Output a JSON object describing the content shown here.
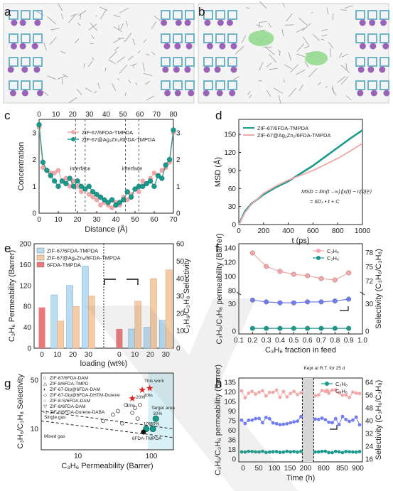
{
  "panels": {
    "a": "a",
    "b": "b",
    "c": "c",
    "d": "d",
    "e": "e",
    "f": "f",
    "g": "g",
    "h": "h"
  },
  "colors": {
    "teal": "#1a9a8c",
    "pink": "#f2a7a8",
    "blue": "#b9dcf3",
    "orange": "#f6cca5",
    "red": "#e9787a",
    "purple": "#9b63b8",
    "cyan": "#6fb3c8",
    "grey": "#9a9a9a",
    "green": "#8fd88a",
    "blueline": "#6f7df0"
  },
  "chart_data": [
    {
      "id": "c",
      "type": "scatter",
      "xlabel": "Distance (Å)",
      "ylabel": "Concentration",
      "xlim": [
        0,
        70
      ],
      "ylim": [
        0,
        3.5
      ],
      "top_xlim": [
        0,
        80
      ],
      "right_ylim": [
        0,
        3.5
      ],
      "xticks": [
        "0",
        "10",
        "20",
        "30",
        "40",
        "50",
        "60",
        "70"
      ],
      "topticks": [
        "0",
        "10",
        "20",
        "30",
        "40",
        "50",
        "60",
        "70",
        "80"
      ],
      "yticks": [
        "0",
        "1",
        "2",
        "3"
      ],
      "ryticks": [
        "0",
        "1",
        "2",
        "3"
      ],
      "annotations": [
        "interface",
        "interface"
      ],
      "series": [
        {
          "name": "ZIF-67/6FDA-TMPDA",
          "color": "#f2a7a8",
          "x": [
            0,
            2,
            4,
            6,
            8,
            10,
            12,
            14,
            16,
            18,
            20,
            22,
            24,
            26,
            28,
            30,
            32,
            34,
            36,
            38,
            40,
            42,
            44,
            46,
            48,
            50,
            52,
            54,
            56,
            58,
            60,
            62,
            64,
            66,
            68,
            70
          ],
          "y": [
            3.2,
            1.7,
            1.6,
            1.5,
            1.5,
            1.6,
            1.2,
            1.3,
            1.0,
            1.2,
            1.0,
            0.8,
            0.9,
            0.7,
            0.6,
            0.5,
            0.3,
            0.4,
            0.3,
            0.2,
            0.4,
            0.3,
            0.6,
            0.5,
            0.7,
            0.9,
            0.8,
            1.2,
            1.1,
            1.3,
            1.5,
            1.4,
            1.6,
            1.7,
            1.9,
            3.0
          ]
        },
        {
          "name": "ZIF-67@Ag₂Zn₂/6FDA-TMPDA",
          "color": "#1a9a8c",
          "x": [
            0,
            2,
            4,
            6,
            8,
            10,
            12,
            14,
            16,
            18,
            20,
            22,
            24,
            26,
            28,
            30,
            32,
            34,
            36,
            38,
            40,
            42,
            44,
            46,
            48,
            50,
            52,
            54,
            56,
            58,
            60,
            62,
            64,
            66,
            68,
            70
          ],
          "y": [
            3.3,
            1.9,
            1.6,
            1.4,
            1.2,
            1.0,
            1.2,
            1.1,
            1.3,
            1.0,
            1.2,
            1.0,
            0.9,
            1.0,
            0.8,
            0.7,
            0.6,
            0.5,
            0.4,
            0.5,
            0.3,
            0.4,
            0.5,
            0.8,
            0.6,
            0.9,
            1.0,
            1.0,
            1.1,
            1.2,
            1.0,
            1.4,
            1.3,
            1.8,
            2.0,
            3.1
          ]
        }
      ]
    },
    {
      "id": "d",
      "type": "line",
      "xlabel": "t (ps)",
      "ylabel": "MSD (Å)",
      "xlim": [
        0,
        1000
      ],
      "ylim": [
        0,
        175
      ],
      "xticks": [
        "0",
        "200",
        "400",
        "600",
        "800",
        "1000"
      ],
      "yticks": [
        "0",
        "30",
        "60",
        "90",
        "120",
        "150"
      ],
      "equation": "MSD = lim(t→∞)⟨|rᵢ(t) − rᵢ(0)|²⟩",
      "equation2": "= 6Dₛ • t + C",
      "series": [
        {
          "name": "ZIF-67/6FDA-TMPDA",
          "color": "#1a9a8c",
          "x": [
            0,
            50,
            100,
            200,
            300,
            400,
            500,
            600,
            700,
            800,
            900,
            1000
          ],
          "y": [
            0,
            22,
            34,
            50,
            62,
            72,
            85,
            98,
            113,
            128,
            143,
            157
          ]
        },
        {
          "name": "ZIF-67@Ag₂Zn₂/6FDA-TMPDA",
          "color": "#f2a7a8",
          "x": [
            0,
            50,
            100,
            200,
            300,
            400,
            500,
            600,
            700,
            800,
            900,
            1000
          ],
          "y": [
            0,
            20,
            33,
            52,
            64,
            74,
            82,
            90,
            100,
            110,
            122,
            135
          ]
        }
      ]
    },
    {
      "id": "e",
      "type": "bar",
      "xlabel": "loading (wt%)",
      "ylabel": "C₃H₆ Permeability (Barrer)",
      "y2label": "C₃H₆/C₃H₈ Selectivity",
      "ylim": [
        0,
        200
      ],
      "y2lim": [
        0,
        60
      ],
      "yticks": [
        "0",
        "40",
        "80",
        "120",
        "160",
        "200"
      ],
      "y2ticks": [
        "0",
        "10",
        "20",
        "30",
        "40",
        "50",
        "60"
      ],
      "categories": [
        "0",
        "10",
        "20",
        "30",
        "0",
        "10",
        "20",
        "30"
      ],
      "series": [
        {
          "name": "ZIF-67/6FDA-TMPDA",
          "color": "#b9dcf3",
          "perm": [
            102,
            120,
            157
          ],
          "sel": [
            11,
            12,
            16
          ]
        },
        {
          "name": "ZIF-67@Ag₂Zn₂/6FDA-TMPDA",
          "color": "#f6cca5",
          "perm": [
            52,
            80,
            100
          ],
          "sel": [
            27,
            40,
            45
          ]
        },
        {
          "name": "6FDA-TMPDA",
          "color": "#e9787a",
          "perm": [
            78
          ],
          "sel": [
            11
          ]
        }
      ]
    },
    {
      "id": "f",
      "type": "line",
      "xlabel": "C₃H₆ fraction in feed",
      "ylabel": "C₃H₆/C₃H₈ permeability (Barrer)",
      "y2label": "Selectivity (C₃H₆/C₃H₈)",
      "xlim": [
        0.1,
        1.0
      ],
      "xticks": [
        "0.1",
        "0.2",
        "0.3",
        "0.4",
        "0.5",
        "0.6",
        "0.7",
        "0.8",
        "0.9",
        "1.0"
      ],
      "yticks_low": [
        "0",
        "30"
      ],
      "yticks_high": [
        "80",
        "100",
        "120",
        "140"
      ],
      "y2ticks_low": [
        "0",
        "30"
      ],
      "y2ticks_high": [
        "72",
        "75",
        "78"
      ],
      "series": [
        {
          "name": "C₃H₆",
          "color": "#f2a7a8",
          "x": [
            0.2,
            0.3,
            0.4,
            0.5,
            0.6,
            0.7,
            0.8,
            0.9
          ],
          "y": [
            133,
            114,
            107,
            103,
            101,
            97,
            95,
            105
          ]
        },
        {
          "name": "C₃H₈",
          "color": "#1a9a8c",
          "x": [
            0.2,
            0.3,
            0.4,
            0.5,
            0.6,
            0.7,
            0.8,
            0.9
          ],
          "y": [
            3,
            3,
            3,
            3,
            3,
            3,
            3,
            3
          ]
        },
        {
          "name": "Selectivity",
          "color": "#6f7df0",
          "x": [
            0.2,
            0.3,
            0.4,
            0.5,
            0.6,
            0.7,
            0.8,
            0.9
          ],
          "y": [
            34,
            32,
            31,
            31,
            32,
            32,
            33,
            35
          ]
        }
      ]
    },
    {
      "id": "g",
      "type": "scatter",
      "xlabel": "C₃H₆ Permeability (Barrer)",
      "ylabel": "C₃H₆/C₃H₈ Selectivity",
      "xscale": "log",
      "yscale": "log",
      "xticks": [
        "10",
        "100"
      ],
      "yticks": [
        "10",
        "50"
      ],
      "legend": [
        "ZIF-67/6FDA-DAM",
        "ZIF-8/6FDA-TMPD",
        "ZIF-67-Dip@6FDA-DAM",
        "ZIF-67-Dip@6FDA-DHTM-Durene",
        "ZIF-8-S/6FDA-DAM",
        "ZIF-8/6FDA-DAM",
        "ZIF-8/6FDA-Durene-DABA"
      ],
      "labels": {
        "this_work": "This work",
        "target": "Target area",
        "single": "Single gas",
        "mixed": "Mixed gas",
        "baseline": "6FDA-TMPDA"
      },
      "this_work_points": [
        {
          "label": "10%",
          "x": 55,
          "y": 27
        },
        {
          "label": "20%",
          "x": 75,
          "y": 36
        },
        {
          "label": "30%",
          "x": 95,
          "y": 38
        }
      ],
      "mixed_points": [
        {
          "label": "10%",
          "x": 85,
          "y": 10
        },
        {
          "label": "20%",
          "x": 105,
          "y": 10
        },
        {
          "label": "30%",
          "x": 115,
          "y": 14
        }
      ],
      "baseline_point": {
        "x": 78,
        "y": 9
      }
    },
    {
      "id": "h",
      "type": "line",
      "xlabel": "Time (h)",
      "ylabel": "C₃H₆/C₃H₈ permeability (Barrer)",
      "y2label": "Selectivity (C₃H₆/C₃H₈)",
      "xticks": [
        "0",
        "50",
        "100",
        "150",
        "200",
        "800",
        "850",
        "900"
      ],
      "yticks": [
        "0",
        "18",
        "36",
        "60",
        "75",
        "90",
        "105",
        "120",
        "135"
      ],
      "y2ticks": [
        "16",
        "24",
        "32",
        "40",
        "48",
        "56",
        "64"
      ],
      "annotation": "Kept at R.T. for 25 d",
      "series": [
        {
          "name": "C₃H₈",
          "color": "#1a9a8c"
        },
        {
          "name": "C₃H₆",
          "color": "#f2a7a8"
        },
        {
          "name": "Selectivity",
          "color": "#6f7df0"
        }
      ]
    }
  ]
}
